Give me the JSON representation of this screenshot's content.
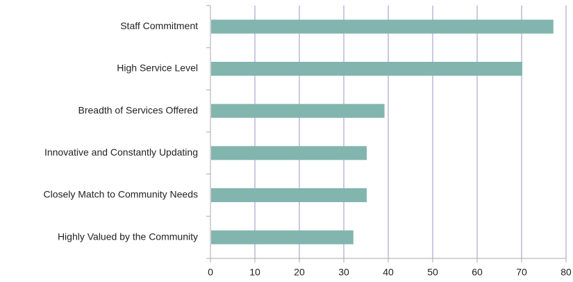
{
  "chart_data": {
    "type": "hbar",
    "categories": [
      "Staff Commitment",
      "High Service Level",
      "Breadth of Services Offered",
      "Innovative and Constantly Updating",
      "Closely Match to Community Needs",
      "Highly Valued by the Community"
    ],
    "values": [
      77,
      70,
      39,
      35,
      35,
      32
    ],
    "color": "#82b5ae",
    "xlim": [
      0,
      80
    ],
    "xticks": [
      0,
      10,
      20,
      30,
      40,
      50,
      60,
      70,
      80
    ],
    "grid": true
  }
}
